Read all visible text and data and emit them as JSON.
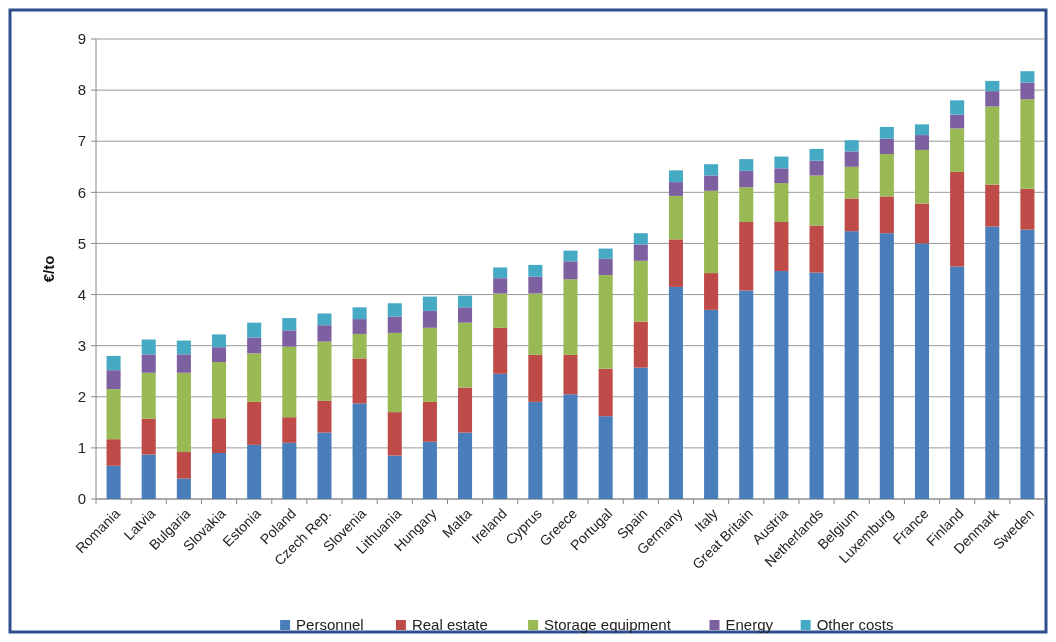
{
  "chart_data": {
    "type": "bar",
    "stacked": true,
    "ylabel": "€/to",
    "ylim": [
      0,
      9
    ],
    "yticks": [
      0,
      1,
      2,
      3,
      4,
      5,
      6,
      7,
      8,
      9
    ],
    "grid": "y",
    "legend": "bottom",
    "categories": [
      "Romania",
      "Latvia",
      "Bulgaria",
      "Slovakia",
      "Estonia",
      "Poland",
      "Czech Rep.",
      "Slovenia",
      "Lithuania",
      "Hungary",
      "Malta",
      "Ireland",
      "Cyprus",
      "Greece",
      "Portugal",
      "Spain",
      "Germany",
      "Italy",
      "Great Britain",
      "Austria",
      "Netherlands",
      "Belgium",
      "Luxemburg",
      "France",
      "Finland",
      "Denmark",
      "Sweden"
    ],
    "series": [
      {
        "name": "Personnel",
        "color": "#4a7ebb",
        "values": [
          0.65,
          0.87,
          0.4,
          0.9,
          1.06,
          1.1,
          1.3,
          1.87,
          0.85,
          1.12,
          1.3,
          2.45,
          1.9,
          2.05,
          1.62,
          2.57,
          4.15,
          3.7,
          4.08,
          4.46,
          4.43,
          5.24,
          5.2,
          5.0,
          4.55,
          5.33,
          5.27
        ]
      },
      {
        "name": "Real estate",
        "color": "#be4b48",
        "values": [
          0.52,
          0.7,
          0.52,
          0.68,
          0.84,
          0.5,
          0.62,
          0.88,
          0.85,
          0.78,
          0.88,
          0.9,
          0.92,
          0.77,
          0.93,
          0.9,
          0.93,
          0.72,
          1.34,
          0.96,
          0.92,
          0.64,
          0.72,
          0.78,
          1.85,
          0.82,
          0.8
        ]
      },
      {
        "name": "Storage equipment",
        "color": "#98b954",
        "values": [
          0.98,
          0.9,
          1.55,
          1.1,
          0.95,
          1.38,
          1.16,
          0.48,
          1.55,
          1.45,
          1.27,
          0.67,
          1.2,
          1.48,
          1.83,
          1.19,
          0.85,
          1.61,
          0.68,
          0.76,
          0.98,
          0.62,
          0.83,
          1.05,
          0.85,
          1.53,
          1.75
        ]
      },
      {
        "name": "Energy",
        "color": "#7d60a0",
        "values": [
          0.37,
          0.36,
          0.36,
          0.29,
          0.31,
          0.32,
          0.32,
          0.29,
          0.32,
          0.33,
          0.3,
          0.3,
          0.33,
          0.35,
          0.32,
          0.32,
          0.27,
          0.3,
          0.32,
          0.29,
          0.29,
          0.3,
          0.3,
          0.29,
          0.27,
          0.3,
          0.33
        ]
      },
      {
        "name": "Other costs",
        "color": "#46aac5",
        "values": [
          0.28,
          0.29,
          0.27,
          0.25,
          0.29,
          0.24,
          0.23,
          0.23,
          0.26,
          0.28,
          0.23,
          0.21,
          0.23,
          0.21,
          0.2,
          0.22,
          0.23,
          0.22,
          0.23,
          0.23,
          0.23,
          0.22,
          0.23,
          0.21,
          0.28,
          0.2,
          0.22
        ]
      }
    ]
  }
}
